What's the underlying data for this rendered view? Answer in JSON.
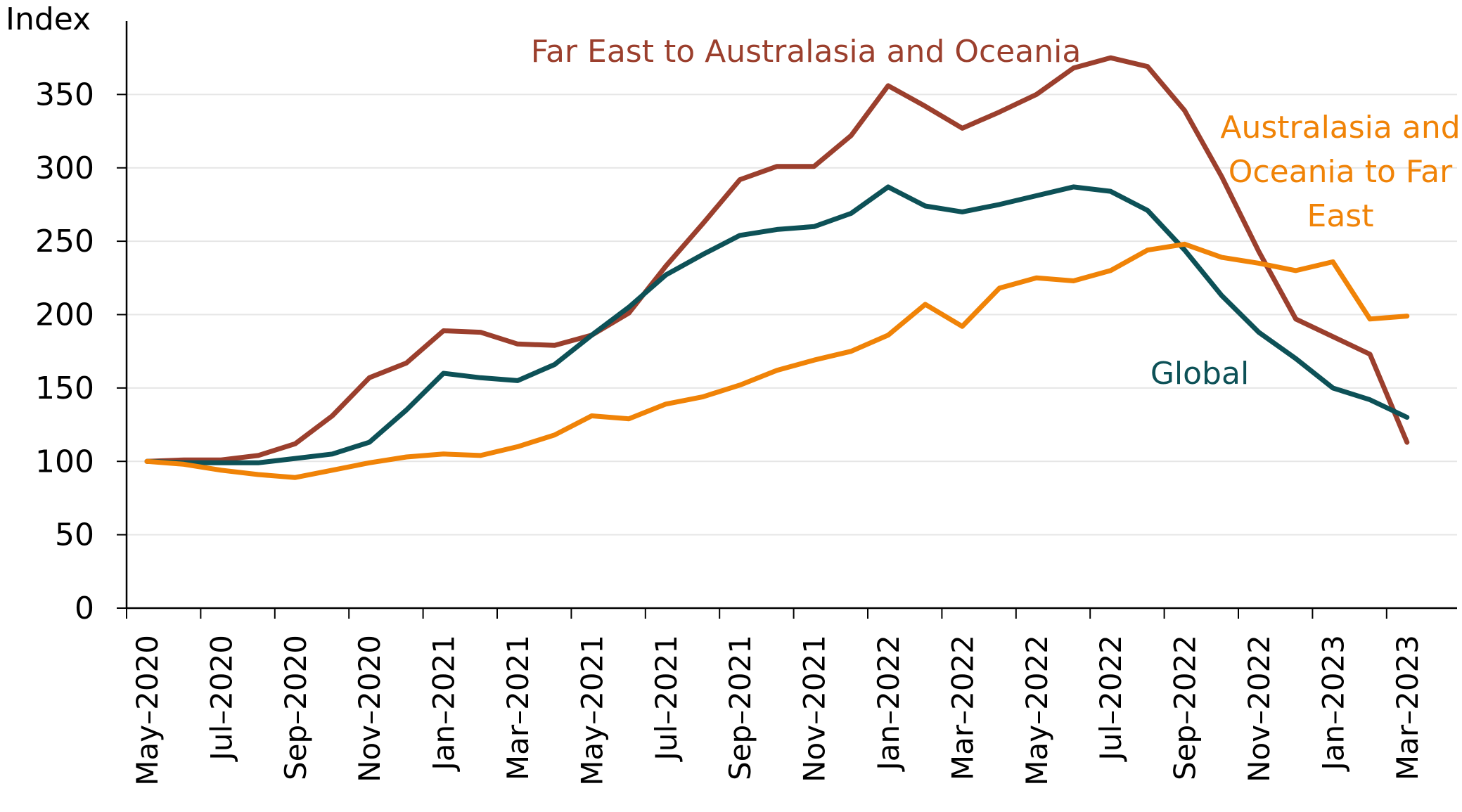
{
  "chart_data": {
    "type": "line",
    "ylabel": "Index",
    "xlabel": "",
    "ylim": [
      0,
      400
    ],
    "yticks": [
      "0",
      "50",
      "100",
      "150",
      "200",
      "250",
      "300",
      "350"
    ],
    "x": [
      "May–2020",
      "Jun–2020",
      "Jul–2020",
      "Aug–2020",
      "Sep–2020",
      "Oct–2020",
      "Nov–2020",
      "Dec–2020",
      "Jan–2021",
      "Feb–2021",
      "Mar–2021",
      "Apr–2021",
      "May–2021",
      "Jun–2021",
      "Jul–2021",
      "Aug–2021",
      "Sep–2021",
      "Oct–2021",
      "Nov–2021",
      "Dec–2021",
      "Jan–2022",
      "Feb–2022",
      "Mar–2022",
      "Apr–2022",
      "May–2022",
      "Jun–2022",
      "Jul–2022",
      "Aug–2022",
      "Sep–2022",
      "Oct–2022",
      "Nov–2022",
      "Dec–2022",
      "Jan–2023",
      "Feb–2023",
      "Mar–2023"
    ],
    "xtick_labels": [
      "May–2020",
      "Jul–2020",
      "Sep–2020",
      "Nov–2020",
      "Jan–2021",
      "Mar–2021",
      "May–2021",
      "Jul–2021",
      "Sep–2021",
      "Nov–2021",
      "Jan–2022",
      "Mar–2022",
      "May–2022",
      "Jul–2022",
      "Sep–2022",
      "Nov–2022",
      "Jan–2023",
      "Mar–2023"
    ],
    "grid": "horizontal",
    "series": [
      {
        "name": "Far East to Australasia and Oceania",
        "color": "#9b3f2d",
        "values": [
          100,
          101,
          101,
          104,
          112,
          131,
          157,
          167,
          189,
          188,
          180,
          179,
          186,
          201,
          233,
          262,
          292,
          301,
          301,
          322,
          356,
          342,
          327,
          338,
          350,
          368,
          375,
          369,
          339,
          294,
          243,
          197,
          185,
          173,
          113
        ]
      },
      {
        "name": "Global",
        "color": "#0d5157",
        "values": [
          100,
          99,
          99,
          99,
          102,
          105,
          113,
          135,
          160,
          157,
          155,
          166,
          186,
          205,
          227,
          241,
          254,
          258,
          260,
          269,
          287,
          274,
          270,
          275,
          281,
          287,
          284,
          271,
          244,
          213,
          188,
          170,
          150,
          142,
          130
        ]
      },
      {
        "name": "Australasia and Oceania to Far East",
        "color": "#f08307",
        "values": [
          100,
          98,
          94,
          91,
          89,
          94,
          99,
          103,
          105,
          104,
          110,
          118,
          131,
          129,
          139,
          144,
          152,
          162,
          169,
          175,
          186,
          207,
          192,
          218,
          225,
          223,
          230,
          244,
          248,
          239,
          235,
          230,
          236,
          197,
          199
        ]
      }
    ],
    "annotations": [
      {
        "series": "Far East to Australasia and Oceania",
        "lines": [
          "Far East to Australasia and Oceania"
        ]
      },
      {
        "series": "Australasia and Oceania to Far East",
        "lines": [
          "Australasia and",
          "Oceania to Far",
          "East"
        ]
      },
      {
        "series": "Global",
        "lines": [
          "Global"
        ]
      }
    ]
  }
}
